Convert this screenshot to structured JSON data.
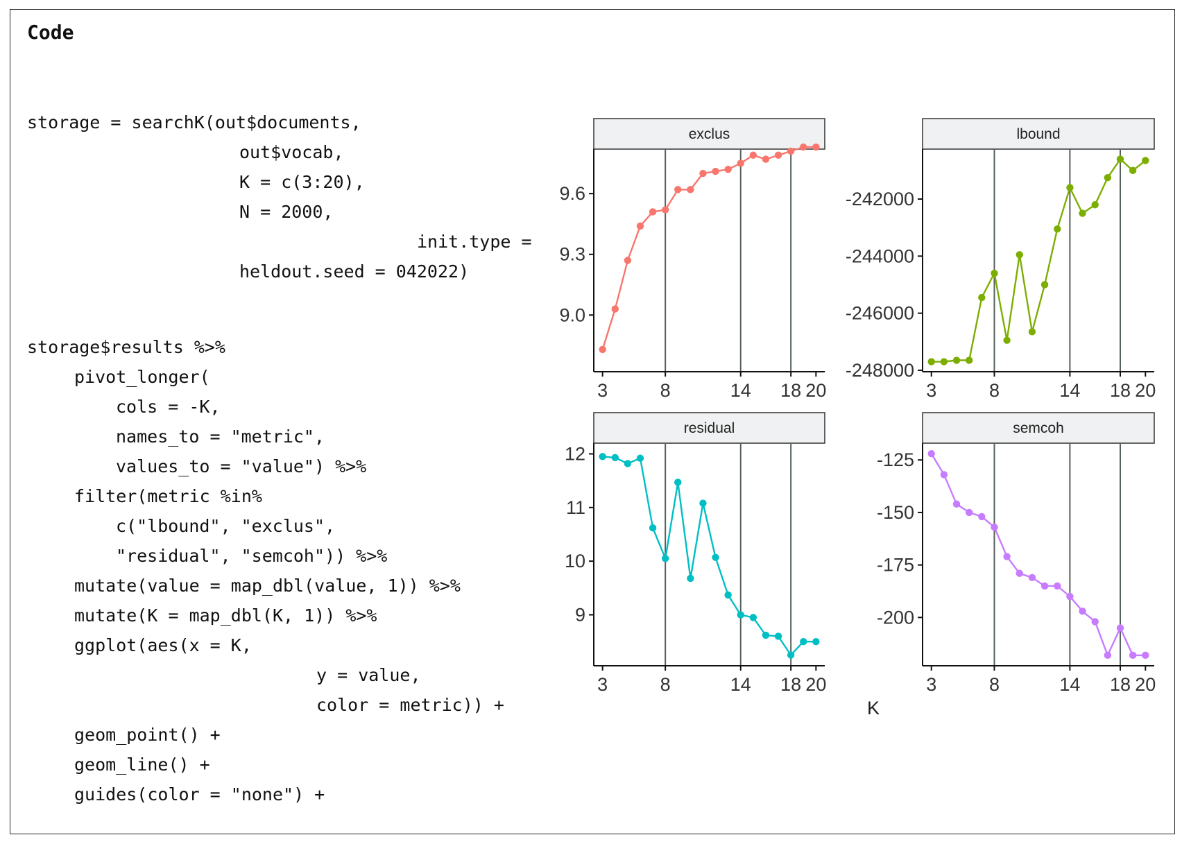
{
  "heading": "Code",
  "code_lines": [
    "storage = searchK(out$documents,",
    "out$vocab,",
    "K = c(3:20),",
    "N = 2000,",
    "init.type =",
    "heldout.seed = 042022)",
    "storage$results %>%",
    "pivot_longer(",
    "cols = -K,",
    "names_to = \"metric\",",
    "values_to = \"value\") %>%",
    "filter(metric %in%",
    "c(\"lbound\", \"exclus\",",
    "\"residual\", \"semcoh\")) %>%",
    "mutate(value = map_dbl(value, 1)) %>%",
    "mutate(K = map_dbl(K, 1)) %>%",
    "ggplot(aes(x = K,",
    "y = value,",
    "color = metric)) +",
    "geom_point() +",
    "geom_line() +",
    "guides(color = \"none\") +"
  ],
  "chart_data": {
    "type": "line",
    "xlabel": "K",
    "x": [
      3,
      4,
      5,
      6,
      7,
      8,
      9,
      10,
      11,
      12,
      13,
      14,
      15,
      16,
      17,
      18,
      19,
      20
    ],
    "x_ticks": [
      3,
      8,
      14,
      18,
      20
    ],
    "vlines": [
      8,
      14,
      18
    ],
    "panels": [
      {
        "name": "exclus",
        "color": "#F8766D",
        "ylim": [
          8.72,
          9.82
        ],
        "y_ticks": [
          9.0,
          9.3,
          9.6
        ],
        "y_tick_labels": [
          "9.0",
          "9.3",
          "9.6"
        ],
        "values": [
          8.83,
          9.03,
          9.27,
          9.44,
          9.51,
          9.52,
          9.62,
          9.62,
          9.7,
          9.71,
          9.72,
          9.75,
          9.79,
          9.77,
          9.79,
          9.81,
          9.83,
          9.83
        ]
      },
      {
        "name": "lbound",
        "color": "#7CAE00",
        "ylim": [
          -248050,
          -240250
        ],
        "y_ticks": [
          -248000,
          -246000,
          -244000,
          -242000
        ],
        "y_tick_labels": [
          "-248000",
          "-246000",
          "-244000",
          "-242000"
        ],
        "values": [
          -247700,
          -247700,
          -247650,
          -247650,
          -245450,
          -244600,
          -246950,
          -243950,
          -246650,
          -245000,
          -243050,
          -241600,
          -242500,
          -242200,
          -241250,
          -240600,
          -241000,
          -240650
        ]
      },
      {
        "name": "residual",
        "color": "#00BFC4",
        "ylim": [
          8.05,
          12.2
        ],
        "y_ticks": [
          9,
          10,
          11,
          12
        ],
        "y_tick_labels": [
          "9",
          "10",
          "11",
          "12"
        ],
        "values": [
          11.95,
          11.93,
          11.82,
          11.92,
          10.62,
          10.05,
          11.47,
          9.68,
          11.08,
          10.07,
          9.37,
          9.0,
          8.95,
          8.62,
          8.6,
          8.25,
          8.5,
          8.5
        ]
      },
      {
        "name": "semcoh",
        "color": "#C77CFF",
        "ylim": [
          -223,
          -117
        ],
        "y_ticks": [
          -200,
          -175,
          -150,
          -125
        ],
        "y_tick_labels": [
          "-200",
          "-175",
          "-150",
          "-125"
        ],
        "values": [
          -122,
          -132,
          -146,
          -150,
          -152,
          -157,
          -171,
          -179,
          -181,
          -185,
          -185,
          -190,
          -197,
          -202,
          -218,
          -205,
          -218,
          -218
        ]
      }
    ]
  }
}
